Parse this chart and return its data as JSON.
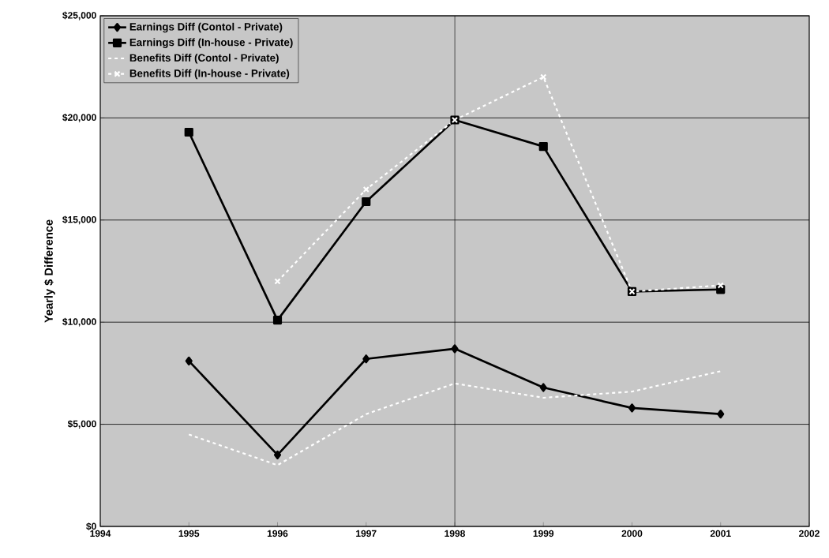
{
  "chart_data": {
    "type": "line",
    "ylabel": "Yearly $ Difference",
    "x": [
      1995,
      1996,
      1997,
      1998,
      1999,
      2000,
      2001
    ],
    "xlim": [
      1994,
      2002
    ],
    "xticks": [
      1994,
      1995,
      1996,
      1997,
      1998,
      1999,
      2000,
      2001,
      2002
    ],
    "ylim": [
      0,
      25000
    ],
    "yticks": [
      {
        "value": 0,
        "label": "$0"
      },
      {
        "value": 5000,
        "label": "$5,000"
      },
      {
        "value": 10000,
        "label": "$10,000"
      },
      {
        "value": 15000,
        "label": "$15,000"
      },
      {
        "value": 20000,
        "label": "$20,000"
      },
      {
        "value": 25000,
        "label": "$25,000"
      }
    ],
    "grid": "y",
    "legend": "top left",
    "ref_lines": [
      {
        "axis": "x",
        "value": 1998,
        "color": "#000000"
      }
    ],
    "series": [
      {
        "name": "Earnings Diff (Contol - Private)",
        "color": "#000000",
        "marker": "diamond",
        "line_style": "solid",
        "values": [
          8100,
          3500,
          8200,
          8700,
          6800,
          5800,
          5500
        ]
      },
      {
        "name": "Earnings Diff (In-house - Private)",
        "color": "#000000",
        "marker": "square",
        "line_style": "solid",
        "values": [
          19300,
          10100,
          15900,
          19900,
          18600,
          11500,
          11600
        ]
      },
      {
        "name": "Benefits Diff (Contol - Private)",
        "color": "#ffffff",
        "marker": "none",
        "line_style": "dashed",
        "values": [
          4500,
          3000,
          5500,
          7000,
          6300,
          6600,
          7600
        ]
      },
      {
        "name": "Benefits Diff (In-house - Private)",
        "color": "#ffffff",
        "marker": "cross",
        "line_style": "dashed",
        "values": [
          null,
          12000,
          16500,
          19900,
          22000,
          11500,
          11800
        ]
      }
    ]
  }
}
